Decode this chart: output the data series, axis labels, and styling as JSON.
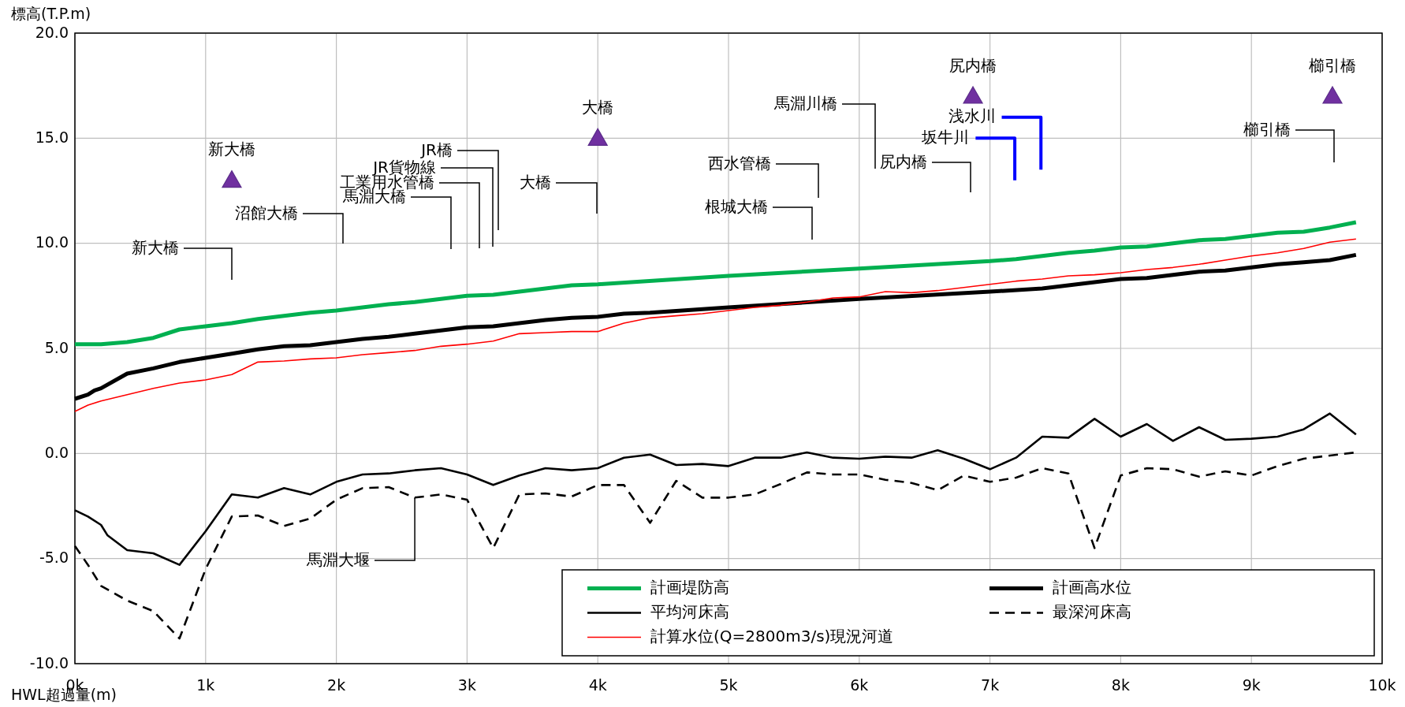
{
  "chart_data": {
    "type": "line",
    "xlabel": "HWL超過量(m)",
    "ylabel": "標高(T.P.m)",
    "xlim": [
      0,
      10000
    ],
    "xticks": [
      {
        "value": 0,
        "label": "0k"
      },
      {
        "value": 1000,
        "label": "1k"
      },
      {
        "value": 2000,
        "label": "2k"
      },
      {
        "value": 3000,
        "label": "3k"
      },
      {
        "value": 4000,
        "label": "4k"
      },
      {
        "value": 5000,
        "label": "5k"
      },
      {
        "value": 6000,
        "label": "6k"
      },
      {
        "value": 7000,
        "label": "7k"
      },
      {
        "value": 8000,
        "label": "8k"
      },
      {
        "value": 9000,
        "label": "9k"
      },
      {
        "value": 10000,
        "label": "10k"
      }
    ],
    "ylim": [
      -10,
      20
    ],
    "yticks": [
      {
        "value": -10,
        "label": "-10.0"
      },
      {
        "value": -5,
        "label": "-5.0"
      },
      {
        "value": 0,
        "label": "0.0"
      },
      {
        "value": 5,
        "label": "5.0"
      },
      {
        "value": 10,
        "label": "10.0"
      },
      {
        "value": 15,
        "label": "15.0"
      },
      {
        "value": 20,
        "label": "20.0"
      }
    ],
    "grid": true,
    "legend": "bottom right",
    "series": [
      {
        "name": "計画堤防高",
        "color": "#00b050",
        "x": [
          0,
          200,
          400,
          600,
          800,
          1000,
          1200,
          1400,
          1600,
          1800,
          2000,
          2200,
          2400,
          2600,
          2800,
          3000,
          3200,
          3400,
          3600,
          3800,
          4000,
          5000,
          6000,
          7000,
          7200,
          7400,
          7600,
          7800,
          8000,
          8200,
          8400,
          8600,
          8800,
          9000,
          9200,
          9400,
          9600,
          9800
        ],
        "values": [
          5.2,
          5.2,
          5.3,
          5.5,
          5.9,
          6.05,
          6.2,
          6.4,
          6.55,
          6.7,
          6.8,
          6.95,
          7.1,
          7.2,
          7.35,
          7.5,
          7.55,
          7.7,
          7.85,
          8.0,
          8.05,
          8.45,
          8.8,
          9.15,
          9.25,
          9.4,
          9.55,
          9.65,
          9.8,
          9.85,
          10.0,
          10.15,
          10.2,
          10.35,
          10.5,
          10.55,
          10.75,
          11.0
        ]
      },
      {
        "name": "計画高水位",
        "color": "#000000",
        "x": [
          0,
          100,
          150,
          200,
          400,
          600,
          800,
          1000,
          1200,
          1400,
          1600,
          1800,
          2000,
          2200,
          2400,
          2600,
          2800,
          3000,
          3200,
          3400,
          3600,
          3800,
          4000,
          4200,
          4400,
          5000,
          6000,
          7000,
          7400,
          7600,
          8000,
          8200,
          8600,
          8800,
          9000,
          9200,
          9400,
          9600,
          9800
        ],
        "values": [
          2.6,
          2.8,
          3.0,
          3.1,
          3.8,
          4.05,
          4.35,
          4.55,
          4.75,
          4.95,
          5.1,
          5.15,
          5.3,
          5.45,
          5.55,
          5.7,
          5.85,
          6.0,
          6.05,
          6.2,
          6.35,
          6.45,
          6.5,
          6.65,
          6.7,
          6.95,
          7.35,
          7.7,
          7.85,
          8.0,
          8.3,
          8.35,
          8.65,
          8.7,
          8.85,
          9.0,
          9.1,
          9.2,
          9.45
        ]
      },
      {
        "name": "平均河床高",
        "color": "#000000",
        "x": [
          0,
          100,
          200,
          250,
          400,
          600,
          800,
          1000,
          1200,
          1400,
          1600,
          1800,
          2000,
          2200,
          2400,
          2600,
          2800,
          3000,
          3200,
          3400,
          3600,
          3800,
          4000,
          4200,
          4400,
          4600,
          4800,
          5000,
          5200,
          5400,
          5600,
          5800,
          6000,
          6200,
          6400,
          6600,
          6800,
          7000,
          7200,
          7400,
          7600,
          7800,
          8000,
          8200,
          8400,
          8600,
          8800,
          9000,
          9200,
          9400,
          9600,
          9800
        ],
        "values": [
          -2.7,
          -3.0,
          -3.4,
          -3.9,
          -4.6,
          -4.75,
          -5.3,
          -3.7,
          -1.95,
          -2.1,
          -1.65,
          -1.95,
          -1.35,
          -1.0,
          -0.95,
          -0.8,
          -0.7,
          -1.0,
          -1.5,
          -1.05,
          -0.7,
          -0.8,
          -0.7,
          -0.2,
          -0.05,
          -0.55,
          -0.5,
          -0.6,
          -0.2,
          -0.2,
          0.05,
          -0.2,
          -0.25,
          -0.15,
          -0.2,
          0.15,
          -0.25,
          -0.75,
          -0.2,
          0.8,
          0.75,
          1.65,
          0.8,
          1.4,
          0.6,
          1.25,
          0.65,
          0.7,
          0.8,
          1.15,
          1.9,
          0.9
        ]
      },
      {
        "name": "最深河床高",
        "color": "#000000",
        "line_style": "dashed",
        "x": [
          0,
          100,
          200,
          400,
          600,
          800,
          1000,
          1200,
          1400,
          1600,
          1800,
          2000,
          2200,
          2400,
          2600,
          2800,
          3000,
          3200,
          3400,
          3600,
          3800,
          4000,
          4200,
          4400,
          4600,
          4800,
          5000,
          5200,
          5400,
          5600,
          5800,
          6000,
          6200,
          6400,
          6600,
          6800,
          7000,
          7200,
          7400,
          7600,
          7800,
          8000,
          8200,
          8400,
          8600,
          8800,
          9000,
          9200,
          9400,
          9600,
          9800
        ],
        "values": [
          -4.4,
          -5.3,
          -6.3,
          -7.0,
          -7.5,
          -8.8,
          -5.5,
          -3.0,
          -2.95,
          -3.45,
          -3.1,
          -2.2,
          -1.65,
          -1.6,
          -2.1,
          -1.95,
          -2.2,
          -4.5,
          -1.95,
          -1.9,
          -2.05,
          -1.5,
          -1.5,
          -3.3,
          -1.3,
          -2.1,
          -2.1,
          -1.95,
          -1.45,
          -0.9,
          -1.0,
          -1.0,
          -1.25,
          -1.4,
          -1.75,
          -1.05,
          -1.35,
          -1.15,
          -0.7,
          -0.95,
          -4.5,
          -1.05,
          -0.7,
          -0.75,
          -1.1,
          -0.85,
          -1.05,
          -0.6,
          -0.25,
          -0.1,
          0.05
        ]
      },
      {
        "name": "計算水位(Q=2800m3/s)現況河道",
        "color": "#ff0000",
        "x": [
          0,
          100,
          200,
          400,
          600,
          800,
          1000,
          1200,
          1400,
          1600,
          1800,
          2000,
          2200,
          2400,
          2600,
          2800,
          3000,
          3200,
          3400,
          3600,
          3800,
          4000,
          4200,
          4400,
          4600,
          4800,
          5000,
          5200,
          5400,
          5600,
          5800,
          6000,
          6200,
          6400,
          6600,
          6800,
          7000,
          7200,
          7400,
          7600,
          7800,
          8000,
          8200,
          8400,
          8600,
          8800,
          9000,
          9200,
          9400,
          9600,
          9800
        ],
        "values": [
          2.0,
          2.3,
          2.5,
          2.8,
          3.1,
          3.35,
          3.5,
          3.75,
          4.35,
          4.4,
          4.5,
          4.55,
          4.7,
          4.8,
          4.9,
          5.1,
          5.2,
          5.35,
          5.7,
          5.75,
          5.8,
          5.8,
          6.2,
          6.45,
          6.55,
          6.65,
          6.8,
          6.95,
          7.05,
          7.2,
          7.4,
          7.45,
          7.7,
          7.65,
          7.75,
          7.9,
          8.05,
          8.2,
          8.3,
          8.45,
          8.5,
          8.6,
          8.75,
          8.85,
          9.0,
          9.2,
          9.4,
          9.55,
          9.75,
          10.05,
          10.2
        ]
      },
      {
        "type": "line",
        "color": "#0000ff",
        "x": [
          7090,
          7390,
          7390
        ],
        "values": [
          16,
          16,
          13.5
        ],
        "value_labels": [
          "浅水川",
          null,
          null
        ]
      },
      {
        "type": "line",
        "color": "#0000ff",
        "x": [
          6890,
          7190,
          7190
        ],
        "values": [
          15,
          15,
          13
        ],
        "value_labels": [
          "坂牛川",
          null,
          null
        ]
      },
      {
        "type": "scatter",
        "marker": "triangle",
        "color": "#7030a0",
        "x": [
          1200,
          4000,
          6870,
          9620
        ],
        "values": [
          13,
          15,
          17,
          17
        ],
        "value_labels": [
          "新大橋",
          "大橋",
          "尻内橋",
          "櫛引橋"
        ]
      }
    ],
    "annotations": [
      "新大橋",
      "沼館大橋",
      "馬淵大橋",
      "工業用水管橋",
      "JR貨物線",
      "JR橋",
      "大橋",
      "西水管橋",
      "根城大橋",
      "馬淵川橋",
      "尻内橋",
      "櫛引橋",
      {
        "text": "馬淵大堰",
        "x": 2600,
        "y": -2.1
      }
    ]
  }
}
